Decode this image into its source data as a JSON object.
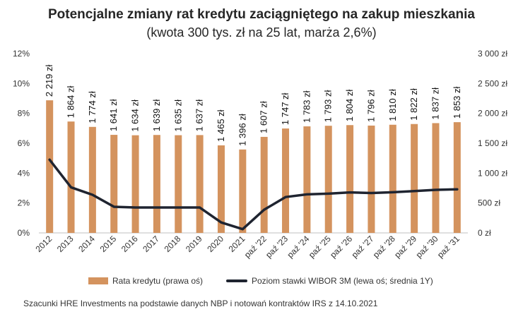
{
  "page": {
    "title": "Potencjalne zmiany rat kredytu zaciągniętego na zakup mieszkania",
    "subtitle": "(kwota 300 tys. zł na 25 lat, marża 2,6%)",
    "source": "Szacunki HRE Investments na podstawie danych NBP i notowań kontraktów IRS z 14.10.2021"
  },
  "colors": {
    "bar": "#D4935E",
    "line": "#1F2430",
    "grid": "#d9d9d9",
    "text": "#333333"
  },
  "chart_data": {
    "type": "bar",
    "categories": [
      "2012",
      "2013",
      "2014",
      "2015",
      "2016",
      "2017",
      "2018",
      "2019",
      "2020",
      "2021",
      "paź '22",
      "paź '23",
      "paź '24",
      "paź '25",
      "paź '26",
      "paź '27",
      "paź '28",
      "paź '29",
      "paź '30",
      "paź '31"
    ],
    "series": [
      {
        "name": "Rata kredytu (prawa oś)",
        "axis": "right",
        "values": [
          2219,
          1864,
          1774,
          1641,
          1634,
          1639,
          1635,
          1637,
          1465,
          1396,
          1607,
          1747,
          1783,
          1793,
          1804,
          1796,
          1810,
          1822,
          1837,
          1853
        ],
        "labels": [
          "2 219 zł",
          "1 864 zł",
          "1 774 zł",
          "1 641 zł",
          "1 634 zł",
          "1 639 zł",
          "1 635 zł",
          "1 637 zł",
          "1 465 zł",
          "1 396 zł",
          "1 607 zł",
          "1 747 zł",
          "1 783 zł",
          "1 793 zł",
          "1 804 zł",
          "1 796 zł",
          "1 810 zł",
          "1 822 zł",
          "1 837 zł",
          "1 853 zł"
        ]
      },
      {
        "name": "Poziom stawki WIBOR 3M (lewa oś; średnia 1Y)",
        "axis": "left",
        "type": "line",
        "values": [
          4.9,
          3.05,
          2.55,
          1.75,
          1.7,
          1.7,
          1.7,
          1.7,
          0.7,
          0.25,
          1.55,
          2.4,
          2.58,
          2.63,
          2.71,
          2.67,
          2.72,
          2.8,
          2.88,
          2.92
        ]
      }
    ],
    "y_left": {
      "min": 0,
      "max": 12,
      "ticks": [
        "0%",
        "2%",
        "4%",
        "6%",
        "8%",
        "10%",
        "12%"
      ]
    },
    "y_right": {
      "min": 0,
      "max": 3000,
      "ticks": [
        "0 zł",
        "500 zł",
        "1 000 zł",
        "1 500 zł",
        "2 000 zł",
        "2 500 zł",
        "3 000 zł"
      ]
    },
    "grid": false,
    "legend_position": "bottom"
  }
}
